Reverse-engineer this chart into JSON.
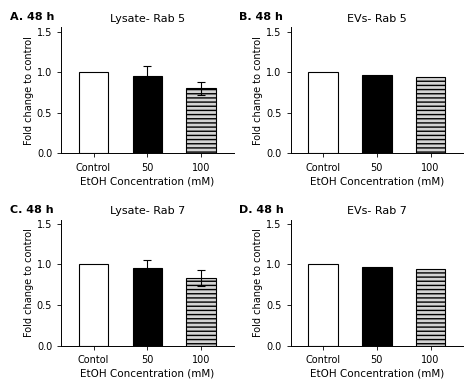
{
  "panels": [
    {
      "label": "A. 48 h",
      "title": "Lysate- Rab 5",
      "categories": [
        "Control",
        "50",
        "100"
      ],
      "values": [
        1.0,
        0.95,
        0.8
      ],
      "errors": [
        0.0,
        0.13,
        0.08
      ],
      "ylabel": "Fold change to control",
      "xlabel": "EtOH Concentration (mM)"
    },
    {
      "label": "B. 48 h",
      "title": "EVs- Rab 5",
      "categories": [
        "Control",
        "50",
        "100"
      ],
      "values": [
        1.0,
        0.96,
        0.94
      ],
      "errors": [
        0.0,
        0.0,
        0.0
      ],
      "ylabel": "Fold change to control",
      "xlabel": "EtOH Concentration (mM)"
    },
    {
      "label": "C. 48 h",
      "title": "Lysate- Rab 7",
      "categories": [
        "Contol",
        "50",
        "100"
      ],
      "values": [
        1.0,
        0.95,
        0.83
      ],
      "errors": [
        0.0,
        0.1,
        0.1
      ],
      "ylabel": "Fold change to control",
      "xlabel": "EtOH Concentration (mM)"
    },
    {
      "label": "D. 48 h",
      "title": "EVs- Rab 7",
      "categories": [
        "Control",
        "50",
        "100"
      ],
      "values": [
        1.0,
        0.97,
        0.94
      ],
      "errors": [
        0.0,
        0.0,
        0.0
      ],
      "ylabel": "Fold change to control",
      "xlabel": "EtOH Concentration (mM)"
    }
  ],
  "bar_colors": [
    "white",
    "black",
    "lightgray"
  ],
  "bar_hatches": [
    null,
    null,
    "----"
  ],
  "ylim": [
    0,
    1.55
  ],
  "yticks": [
    0.0,
    0.5,
    1.0,
    1.5
  ],
  "background_color": "#ffffff",
  "edge_color": "#000000",
  "bar_width": 0.55
}
